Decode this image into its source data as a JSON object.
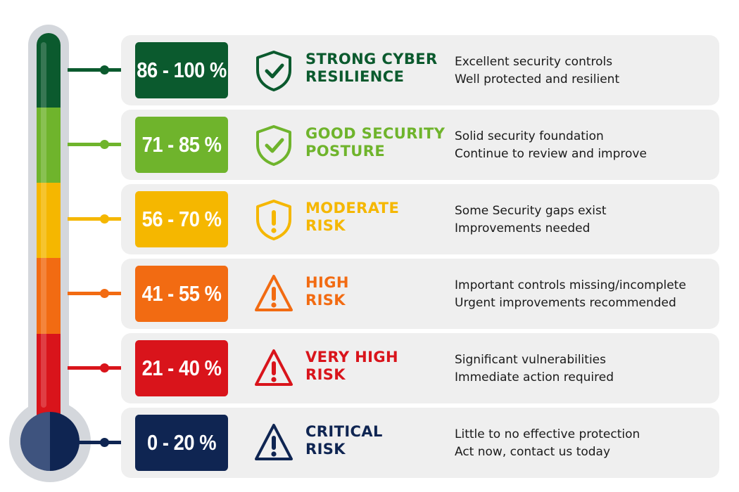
{
  "levels": [
    {
      "range": "86 - 100 %",
      "title_line1": "STRONG CYBER",
      "title_line2": "RESILIENCE",
      "desc_line1": "Excellent security controls",
      "desc_line2": "Well protected and resilient",
      "color": "#0b5a2e",
      "icon": "shield-check-icon"
    },
    {
      "range": "71 - 85 %",
      "title_line1": "GOOD SECURITY",
      "title_line2": "POSTURE",
      "desc_line1": "Solid security foundation",
      "desc_line2": "Continue to review and improve",
      "color": "#6fb42c",
      "icon": "shield-check-icon"
    },
    {
      "range": "56 - 70 %",
      "title_line1": "MODERATE",
      "title_line2": "RISK",
      "desc_line1": "Some Security gaps exist",
      "desc_line2": "Improvements needed",
      "color": "#f5b700",
      "icon": "shield-exclamation-icon"
    },
    {
      "range": "41 - 55 %",
      "title_line1": "HIGH",
      "title_line2": "RISK",
      "desc_line1": "Important controls missing/incomplete",
      "desc_line2": "Urgent improvements recommended",
      "color": "#f26b12",
      "icon": "warning-triangle-icon"
    },
    {
      "range": "21 - 40 %",
      "title_line1": "VERY HIGH",
      "title_line2": "RISK",
      "desc_line1": "Significant vulnerabilities",
      "desc_line2": "Immediate action required",
      "color": "#d9141b",
      "icon": "warning-triangle-icon"
    },
    {
      "range": "0 - 20 %",
      "title_line1": "CRITICAL",
      "title_line2": "RISK",
      "desc_line1": "Little to no effective protection",
      "desc_line2": "Act now, contact us today",
      "color": "#0f2552",
      "icon": "warning-triangle-icon"
    }
  ],
  "thermometer_colors": [
    "#0b5a2e",
    "#6fb42c",
    "#f5b700",
    "#f26b12",
    "#d9141b"
  ]
}
